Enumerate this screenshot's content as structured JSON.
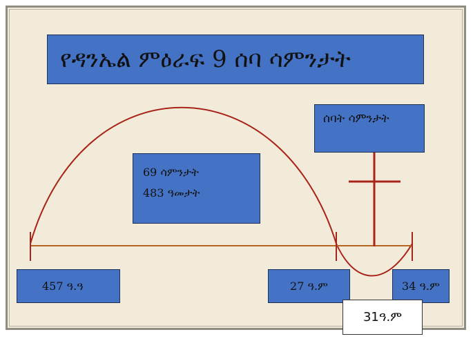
{
  "title": "የዳንኤል ምዕራፍ 9 ሰባ ሳምንታት",
  "weeks_label": "ሰባት ሳምንታት",
  "center": {
    "line1": "69 ሳምንታት",
    "line2": "483 ዓመታት"
  },
  "dates": {
    "start": "457 ዓ.ዓ",
    "mid": "27 ዓ.ም",
    "end": "34 ዓ.ም",
    "cross": "31ዓ.ም"
  },
  "colors": {
    "box_fill": "#4472c4",
    "arc": "#a82318",
    "timeline": "#b5651d",
    "background": "#f3ebd9"
  }
}
